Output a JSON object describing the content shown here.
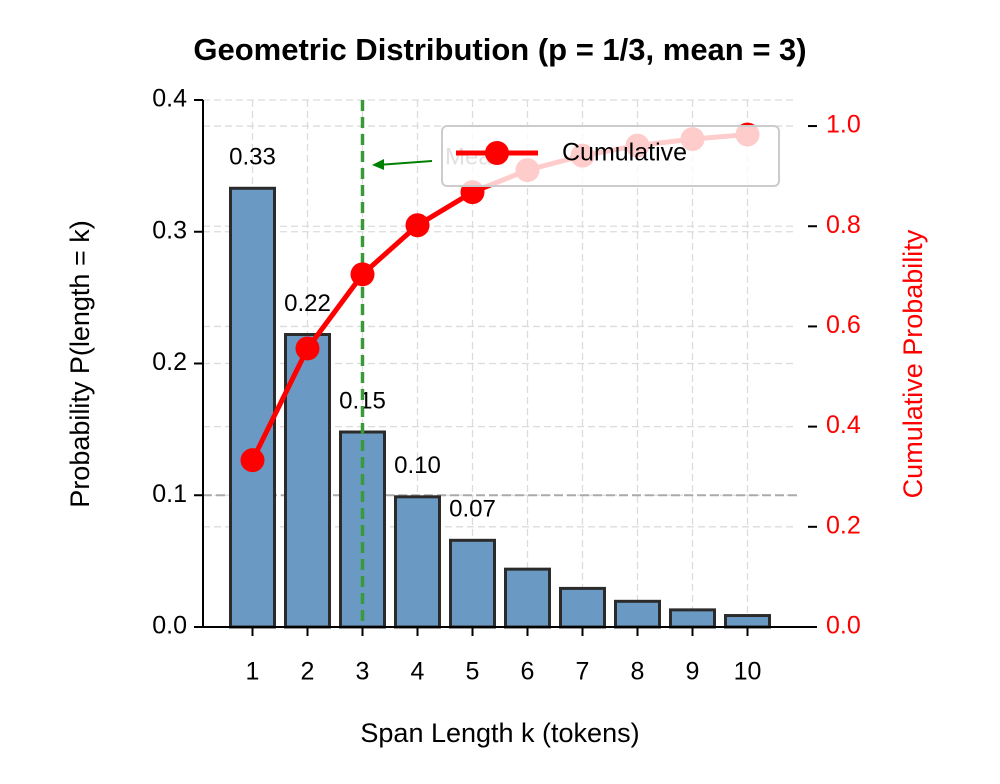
{
  "chart_data": {
    "type": "bar",
    "title": "Geometric Distribution (p = 1/3, mean = 3)",
    "x_label": "Span Length k (tokens)",
    "y_label": "Probability P(length = k)",
    "y2_label": "Cumulative Probability",
    "x": [
      1,
      2,
      3,
      4,
      5,
      6,
      7,
      8,
      9,
      10
    ],
    "xlim": [
      0.1,
      10.9
    ],
    "xticks": [
      1,
      2,
      3,
      4,
      5,
      6,
      7,
      8,
      9,
      10
    ],
    "ylim": [
      0,
      0.4
    ],
    "yticks": [
      {
        "value": 0,
        "label": "0.0"
      },
      0.1,
      0.2,
      0.3,
      0.4
    ],
    "y2lim": [
      0,
      1.052
    ],
    "y2ticks": [
      {
        "value": 0,
        "label": "0.0"
      },
      0.2,
      0.4,
      0.6,
      0.8,
      {
        "value": 1,
        "label": "1.0"
      }
    ],
    "grid": true,
    "legend": "upper right",
    "vline": 3,
    "vline_color": "#3a9a3a",
    "hline": 0.1,
    "annotation": "Mean",
    "series": [
      {
        "type": "bar",
        "color": "#6a9ac4",
        "values": [
          0.333,
          0.222,
          0.148,
          0.0988,
          0.0658,
          0.0439,
          0.0293,
          0.0195,
          0.013,
          0.0087
        ],
        "value_labels": [
          "0.33",
          "0.22",
          "0.15",
          "0.10",
          "0.07",
          null,
          null,
          null,
          null,
          null
        ]
      },
      {
        "type": "line",
        "name": "Cumulative",
        "color": "#ff0000",
        "axis": "y2",
        "values": [
          0.333,
          0.556,
          0.704,
          0.802,
          0.868,
          0.912,
          0.941,
          0.961,
          0.974,
          0.983
        ]
      }
    ]
  }
}
